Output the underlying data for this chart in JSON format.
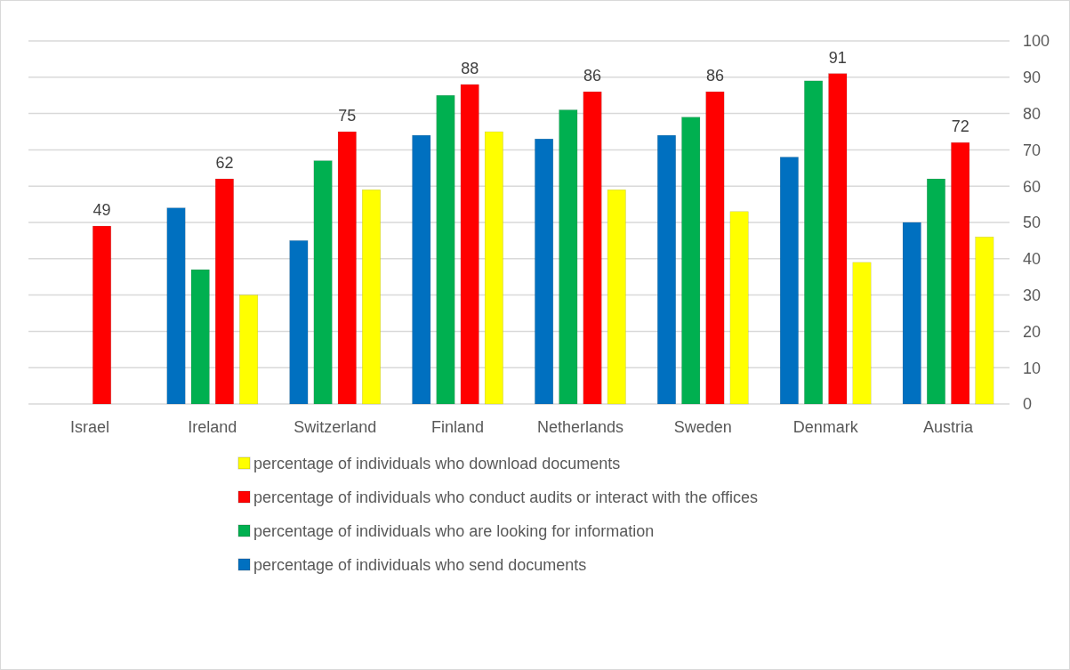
{
  "chart_data": {
    "type": "bar",
    "categories": [
      "Israel",
      "Ireland",
      "Switzerland",
      "Finland",
      "Netherlands",
      "Sweden",
      "Denmark",
      "Austria"
    ],
    "series": [
      {
        "name": "percentage of individuals who send documents",
        "color": "#0070c0",
        "values": [
          null,
          54,
          45,
          74,
          73,
          74,
          68,
          50
        ]
      },
      {
        "name": "percentage of individuals who are looking for information",
        "color": "#00b050",
        "values": [
          null,
          37,
          67,
          85,
          81,
          79,
          89,
          62
        ]
      },
      {
        "name": "percentage of individuals who conduct audits or interact with the offices",
        "color": "#ff0000",
        "values": [
          49,
          62,
          75,
          88,
          86,
          86,
          91,
          72
        ],
        "value_labels": [
          "49",
          "62",
          "75",
          "88",
          "86",
          "86",
          "91",
          "72"
        ]
      },
      {
        "name": "percentage of individuals who download documents",
        "color": "#ffff00",
        "values": [
          null,
          30,
          59,
          75,
          59,
          53,
          39,
          46
        ]
      }
    ],
    "ylim": [
      0,
      100
    ],
    "yticks": [
      0,
      10,
      20,
      30,
      40,
      50,
      60,
      70,
      80,
      90,
      100
    ],
    "grid": "y",
    "legend": "bottom"
  }
}
